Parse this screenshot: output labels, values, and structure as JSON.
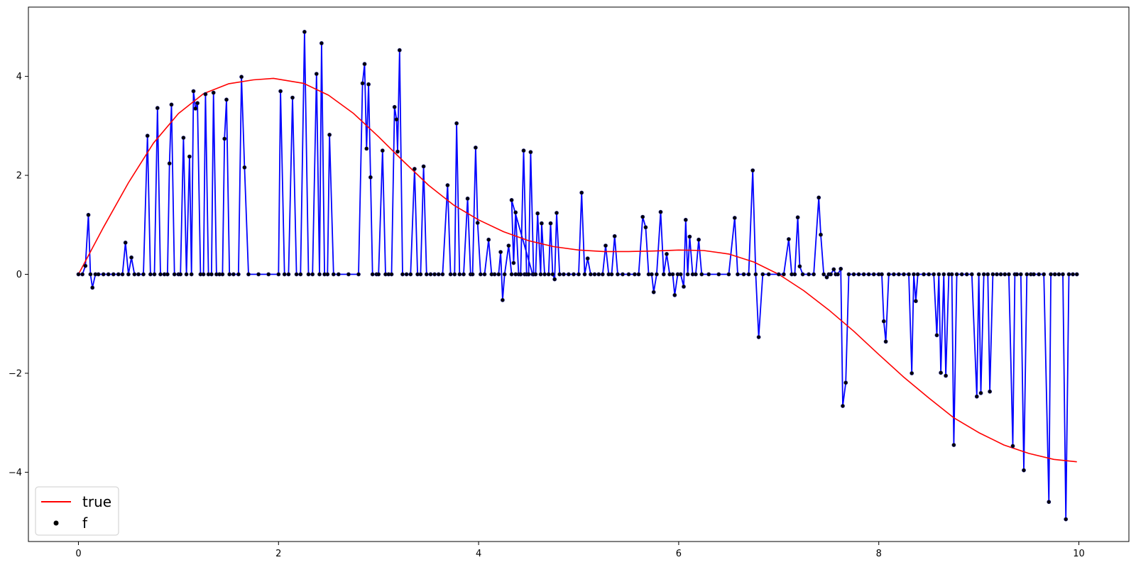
{
  "chart_data": {
    "type": "line",
    "xlim": [
      -0.5,
      10.5
    ],
    "ylim": [
      -5.4,
      5.4
    ],
    "x_ticks": [
      0,
      2,
      4,
      6,
      8,
      10
    ],
    "y_ticks": [
      -4,
      -2,
      0,
      2,
      4
    ],
    "grid": false,
    "legend_position": "lower-left",
    "true_curve": {
      "name": "true",
      "color": "#ff0000",
      "x": [
        0.0,
        0.25,
        0.5,
        0.75,
        1.0,
        1.25,
        1.5,
        1.75,
        1.95,
        2.25,
        2.5,
        2.75,
        3.0,
        3.25,
        3.5,
        3.75,
        4.0,
        4.25,
        4.5,
        4.75,
        5.0,
        5.25,
        5.5,
        5.75,
        6.0,
        6.25,
        6.5,
        6.75,
        7.0,
        7.25,
        7.5,
        7.75,
        8.0,
        8.25,
        8.5,
        8.75,
        9.0,
        9.25,
        9.5,
        9.75,
        9.98
      ],
      "y": [
        0.0,
        0.95,
        1.85,
        2.65,
        3.25,
        3.65,
        3.85,
        3.93,
        3.96,
        3.86,
        3.62,
        3.25,
        2.78,
        2.28,
        1.8,
        1.4,
        1.1,
        0.86,
        0.68,
        0.56,
        0.49,
        0.46,
        0.46,
        0.47,
        0.49,
        0.48,
        0.41,
        0.25,
        0.0,
        -0.33,
        -0.72,
        -1.15,
        -1.62,
        -2.08,
        -2.5,
        -2.9,
        -3.2,
        -3.45,
        -3.62,
        -3.74,
        -3.79
      ]
    },
    "f_series": {
      "name": "f",
      "line_color": "#0000ff",
      "marker_color": "#000000",
      "points": [
        [
          0.0,
          0
        ],
        [
          0.04,
          0
        ],
        [
          0.07,
          0.17
        ],
        [
          0.1,
          1.2
        ],
        [
          0.12,
          0
        ],
        [
          0.14,
          -0.27
        ],
        [
          0.17,
          0
        ],
        [
          0.2,
          0
        ],
        [
          0.25,
          0
        ],
        [
          0.3,
          0
        ],
        [
          0.35,
          0
        ],
        [
          0.4,
          0
        ],
        [
          0.44,
          0
        ],
        [
          0.47,
          0.64
        ],
        [
          0.5,
          0
        ],
        [
          0.53,
          0.34
        ],
        [
          0.56,
          0
        ],
        [
          0.6,
          0
        ],
        [
          0.65,
          0
        ],
        [
          0.69,
          2.8
        ],
        [
          0.72,
          0
        ],
        [
          0.76,
          0
        ],
        [
          0.79,
          3.36
        ],
        [
          0.82,
          0
        ],
        [
          0.86,
          0
        ],
        [
          0.89,
          0
        ],
        [
          0.91,
          2.24
        ],
        [
          0.93,
          3.43
        ],
        [
          0.96,
          0
        ],
        [
          1.0,
          0
        ],
        [
          1.02,
          0
        ],
        [
          1.05,
          2.76
        ],
        [
          1.08,
          0
        ],
        [
          1.11,
          2.38
        ],
        [
          1.13,
          0
        ],
        [
          1.15,
          3.7
        ],
        [
          1.17,
          3.35
        ],
        [
          1.19,
          3.46
        ],
        [
          1.22,
          0
        ],
        [
          1.25,
          0
        ],
        [
          1.27,
          3.64
        ],
        [
          1.3,
          0
        ],
        [
          1.33,
          0
        ],
        [
          1.35,
          3.67
        ],
        [
          1.38,
          0
        ],
        [
          1.41,
          0
        ],
        [
          1.44,
          0
        ],
        [
          1.46,
          2.74
        ],
        [
          1.48,
          3.53
        ],
        [
          1.51,
          0
        ],
        [
          1.55,
          0
        ],
        [
          1.6,
          0
        ],
        [
          1.63,
          3.99
        ],
        [
          1.66,
          2.16
        ],
        [
          1.7,
          0
        ],
        [
          1.8,
          0
        ],
        [
          1.9,
          0
        ],
        [
          2.0,
          0
        ],
        [
          2.02,
          3.7
        ],
        [
          2.06,
          0
        ],
        [
          2.1,
          0
        ],
        [
          2.14,
          3.57
        ],
        [
          2.18,
          0
        ],
        [
          2.22,
          0
        ],
        [
          2.26,
          4.9
        ],
        [
          2.3,
          0
        ],
        [
          2.34,
          0
        ],
        [
          2.38,
          4.05
        ],
        [
          2.41,
          0
        ],
        [
          2.43,
          4.67
        ],
        [
          2.46,
          0
        ],
        [
          2.49,
          0
        ],
        [
          2.51,
          2.82
        ],
        [
          2.55,
          0
        ],
        [
          2.6,
          0
        ],
        [
          2.7,
          0
        ],
        [
          2.8,
          0
        ],
        [
          2.84,
          3.86
        ],
        [
          2.86,
          4.25
        ],
        [
          2.88,
          2.54
        ],
        [
          2.9,
          3.84
        ],
        [
          2.92,
          1.96
        ],
        [
          2.94,
          0
        ],
        [
          2.98,
          0
        ],
        [
          3.0,
          0
        ],
        [
          3.04,
          2.5
        ],
        [
          3.07,
          0
        ],
        [
          3.1,
          0
        ],
        [
          3.13,
          0
        ],
        [
          3.16,
          3.38
        ],
        [
          3.18,
          3.13
        ],
        [
          3.19,
          2.48
        ],
        [
          3.21,
          4.53
        ],
        [
          3.24,
          0
        ],
        [
          3.28,
          0
        ],
        [
          3.32,
          0
        ],
        [
          3.36,
          2.13
        ],
        [
          3.39,
          0
        ],
        [
          3.42,
          0
        ],
        [
          3.45,
          2.18
        ],
        [
          3.48,
          0
        ],
        [
          3.52,
          0
        ],
        [
          3.56,
          0
        ],
        [
          3.6,
          0
        ],
        [
          3.64,
          0
        ],
        [
          3.69,
          1.8
        ],
        [
          3.72,
          0
        ],
        [
          3.76,
          0
        ],
        [
          3.78,
          3.05
        ],
        [
          3.81,
          0
        ],
        [
          3.85,
          0
        ],
        [
          3.89,
          1.53
        ],
        [
          3.92,
          0
        ],
        [
          3.94,
          0
        ],
        [
          3.97,
          2.56
        ],
        [
          3.99,
          1.04
        ],
        [
          4.02,
          0
        ],
        [
          4.06,
          0
        ],
        [
          4.1,
          0.7
        ],
        [
          4.13,
          0
        ],
        [
          4.16,
          0
        ],
        [
          4.2,
          0
        ],
        [
          4.22,
          0.45
        ],
        [
          4.24,
          -0.52
        ],
        [
          4.26,
          0
        ],
        [
          4.3,
          0.58
        ],
        [
          4.33,
          0
        ],
        [
          4.37,
          0
        ],
        [
          4.42,
          0
        ],
        [
          4.46,
          0
        ],
        [
          4.5,
          0
        ],
        [
          4.54,
          0
        ],
        [
          4.33,
          1.5
        ],
        [
          4.35,
          0.23
        ],
        [
          4.37,
          1.25
        ],
        [
          4.4,
          0
        ],
        [
          4.42,
          0
        ],
        [
          4.45,
          2.5
        ],
        [
          4.48,
          0
        ],
        [
          4.5,
          0
        ],
        [
          4.52,
          2.47
        ],
        [
          4.55,
          0
        ],
        [
          4.57,
          0
        ],
        [
          4.59,
          1.23
        ],
        [
          4.62,
          0
        ],
        [
          4.63,
          1.03
        ],
        [
          4.66,
          0
        ],
        [
          4.7,
          0
        ],
        [
          4.72,
          1.03
        ],
        [
          4.74,
          0
        ],
        [
          4.76,
          -0.1
        ],
        [
          4.78,
          1.24
        ],
        [
          4.81,
          0
        ],
        [
          4.85,
          0
        ],
        [
          4.9,
          0
        ],
        [
          4.95,
          0
        ],
        [
          5.0,
          0
        ],
        [
          5.03,
          1.65
        ],
        [
          5.06,
          0
        ],
        [
          5.09,
          0.32
        ],
        [
          5.12,
          0
        ],
        [
          5.16,
          0
        ],
        [
          5.2,
          0
        ],
        [
          5.24,
          0
        ],
        [
          5.27,
          0.58
        ],
        [
          5.3,
          0
        ],
        [
          5.33,
          0
        ],
        [
          5.36,
          0.77
        ],
        [
          5.39,
          0
        ],
        [
          5.44,
          0
        ],
        [
          5.5,
          0
        ],
        [
          5.56,
          0
        ],
        [
          5.6,
          0
        ],
        [
          5.64,
          1.16
        ],
        [
          5.67,
          0.95
        ],
        [
          5.7,
          0
        ],
        [
          5.73,
          0
        ],
        [
          5.75,
          -0.36
        ],
        [
          5.78,
          0
        ],
        [
          5.82,
          1.26
        ],
        [
          5.85,
          0
        ],
        [
          5.88,
          0.41
        ],
        [
          5.91,
          0
        ],
        [
          5.94,
          0
        ],
        [
          5.96,
          -0.42
        ],
        [
          5.99,
          0
        ],
        [
          6.02,
          0
        ],
        [
          6.05,
          -0.25
        ],
        [
          6.07,
          1.1
        ],
        [
          6.09,
          0
        ],
        [
          6.11,
          0.76
        ],
        [
          6.14,
          0
        ],
        [
          6.17,
          0
        ],
        [
          6.2,
          0.7
        ],
        [
          6.23,
          0
        ],
        [
          6.3,
          0
        ],
        [
          6.4,
          0
        ],
        [
          6.5,
          0
        ],
        [
          6.56,
          1.14
        ],
        [
          6.59,
          0
        ],
        [
          6.65,
          0
        ],
        [
          6.7,
          0
        ],
        [
          6.74,
          2.1
        ],
        [
          6.77,
          0
        ],
        [
          6.8,
          -1.27
        ],
        [
          6.84,
          0
        ],
        [
          6.9,
          0
        ],
        [
          7.0,
          0
        ],
        [
          7.05,
          0
        ],
        [
          7.1,
          0.71
        ],
        [
          7.13,
          0
        ],
        [
          7.16,
          0
        ],
        [
          7.19,
          1.15
        ],
        [
          7.21,
          0.16
        ],
        [
          7.24,
          0
        ],
        [
          7.3,
          0
        ],
        [
          7.35,
          0
        ],
        [
          7.4,
          1.55
        ],
        [
          7.42,
          0.8
        ],
        [
          7.45,
          0
        ],
        [
          7.48,
          -0.06
        ],
        [
          7.5,
          0
        ],
        [
          7.52,
          0
        ],
        [
          7.55,
          0.1
        ],
        [
          7.57,
          0
        ],
        [
          7.59,
          0
        ],
        [
          7.62,
          0.11
        ],
        [
          7.64,
          -2.66
        ],
        [
          7.67,
          -2.19
        ],
        [
          7.7,
          0
        ],
        [
          7.75,
          0
        ],
        [
          7.8,
          0
        ],
        [
          7.85,
          0
        ],
        [
          7.9,
          0
        ],
        [
          7.95,
          0
        ],
        [
          8.0,
          0
        ],
        [
          8.03,
          0
        ],
        [
          8.05,
          -0.95
        ],
        [
          8.07,
          -1.36
        ],
        [
          8.1,
          0
        ],
        [
          8.15,
          0
        ],
        [
          8.2,
          0
        ],
        [
          8.25,
          0
        ],
        [
          8.3,
          0
        ],
        [
          8.33,
          -2.0
        ],
        [
          8.35,
          0
        ],
        [
          8.37,
          -0.54
        ],
        [
          8.39,
          0
        ],
        [
          8.45,
          0
        ],
        [
          8.5,
          0
        ],
        [
          8.55,
          0
        ],
        [
          8.58,
          -1.23
        ],
        [
          8.6,
          0
        ],
        [
          8.62,
          -1.99
        ],
        [
          8.65,
          0
        ],
        [
          8.67,
          -2.05
        ],
        [
          8.7,
          0
        ],
        [
          8.73,
          0
        ],
        [
          8.75,
          -3.45
        ],
        [
          8.78,
          0
        ],
        [
          8.83,
          0
        ],
        [
          8.88,
          0
        ],
        [
          8.93,
          0
        ],
        [
          8.98,
          -2.47
        ],
        [
          9.0,
          0
        ],
        [
          9.02,
          -2.4
        ],
        [
          9.05,
          0
        ],
        [
          9.09,
          0
        ],
        [
          9.11,
          -2.37
        ],
        [
          9.14,
          0
        ],
        [
          9.18,
          0
        ],
        [
          9.22,
          0
        ],
        [
          9.26,
          0
        ],
        [
          9.3,
          0
        ],
        [
          9.34,
          -3.47
        ],
        [
          9.36,
          0
        ],
        [
          9.38,
          0
        ],
        [
          9.42,
          0
        ],
        [
          9.45,
          -3.96
        ],
        [
          9.48,
          0
        ],
        [
          9.52,
          0
        ],
        [
          9.55,
          0
        ],
        [
          9.6,
          0
        ],
        [
          9.65,
          0
        ],
        [
          9.7,
          -4.6
        ],
        [
          9.72,
          0
        ],
        [
          9.76,
          0
        ],
        [
          9.8,
          0
        ],
        [
          9.84,
          0
        ],
        [
          9.87,
          -4.95
        ],
        [
          9.9,
          0
        ],
        [
          9.94,
          0
        ],
        [
          9.98,
          0
        ]
      ]
    },
    "legend": [
      {
        "label": "true",
        "kind": "line",
        "color": "#ff0000"
      },
      {
        "label": "f",
        "kind": "marker",
        "color": "#000000"
      }
    ]
  }
}
